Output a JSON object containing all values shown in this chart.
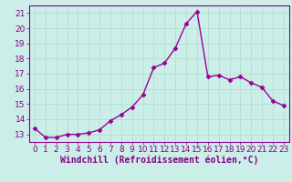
{
  "x": [
    0,
    1,
    2,
    3,
    4,
    5,
    6,
    7,
    8,
    9,
    10,
    11,
    12,
    13,
    14,
    15,
    16,
    17,
    18,
    19,
    20,
    21,
    22,
    23
  ],
  "y": [
    13.4,
    12.8,
    12.8,
    13.0,
    13.0,
    13.1,
    13.3,
    13.9,
    14.3,
    14.8,
    15.6,
    17.4,
    17.7,
    18.7,
    20.3,
    21.1,
    16.8,
    16.9,
    16.6,
    16.8,
    16.4,
    16.1,
    15.2,
    14.9
  ],
  "line_color": "#990099",
  "marker": "D",
  "marker_size": 2.5,
  "linewidth": 1.0,
  "xlabel": "Windchill (Refroidissement éolien,°C)",
  "xlabel_fontsize": 7,
  "ylim": [
    12.5,
    21.5
  ],
  "xlim": [
    -0.5,
    23.5
  ],
  "yticks": [
    13,
    14,
    15,
    16,
    17,
    18,
    19,
    20,
    21
  ],
  "xticks": [
    0,
    1,
    2,
    3,
    4,
    5,
    6,
    7,
    8,
    9,
    10,
    11,
    12,
    13,
    14,
    15,
    16,
    17,
    18,
    19,
    20,
    21,
    22,
    23
  ],
  "grid_color": "#aaddcc",
  "bg_color": "#cceee8",
  "tick_fontsize": 6.5,
  "tick_color": "#880088",
  "spine_color": "#880088"
}
